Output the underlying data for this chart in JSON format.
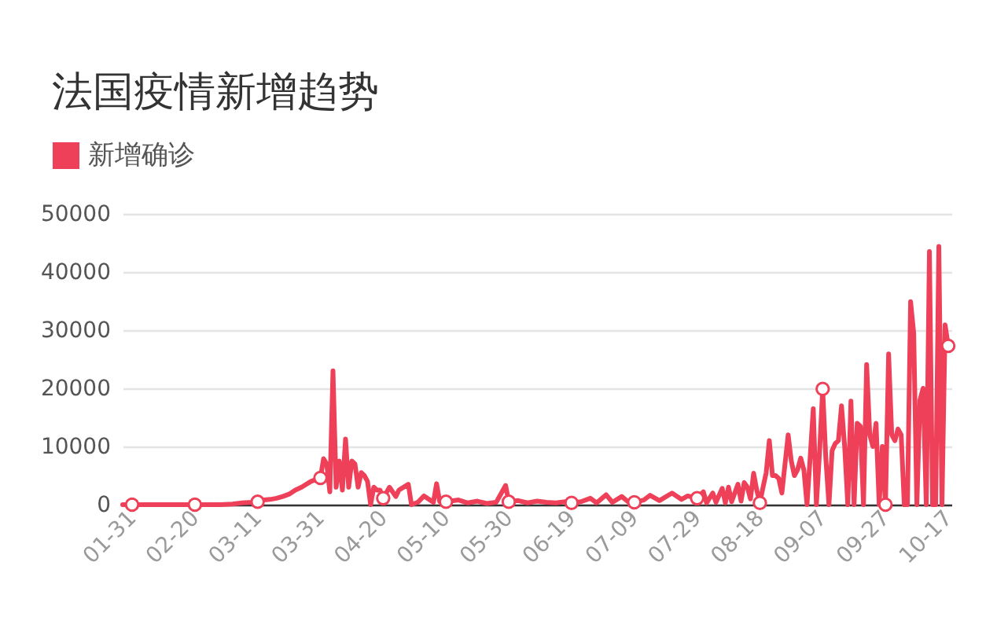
{
  "chart_data": {
    "type": "line",
    "title": "法国疫情新增趋势",
    "legend": "top left",
    "grid": "y",
    "xlim": [
      "--01-28",
      "--10-18"
    ],
    "ylim": [
      0,
      50000
    ],
    "yticks": [
      0,
      10000,
      20000,
      30000,
      40000,
      50000
    ],
    "xticks": [
      {
        "value": "--01-31",
        "label": "01-31"
      },
      {
        "value": "--02-20",
        "label": "02-20"
      },
      {
        "value": "--03-11",
        "label": "03-11"
      },
      {
        "value": "--03-31",
        "label": "03-31"
      },
      {
        "value": "--04-20",
        "label": "04-20"
      },
      {
        "value": "--05-10",
        "label": "05-10"
      },
      {
        "value": "--05-30",
        "label": "05-30"
      },
      {
        "value": "--06-19",
        "label": "06-19"
      },
      {
        "value": "--07-09",
        "label": "07-09"
      },
      {
        "value": "--07-29",
        "label": "07-29"
      },
      {
        "value": "--08-18",
        "label": "08-18"
      },
      {
        "value": "--09-07",
        "label": "09-07"
      },
      {
        "value": "--09-27",
        "label": "09-27"
      },
      {
        "value": "--10-17",
        "label": "10-17"
      }
    ],
    "x": [
      "--01-28",
      "--01-31",
      "--02-10",
      "--02-20",
      "--02-28",
      "--03-03",
      "--03-06",
      "--03-09",
      "--03-11",
      "--03-13",
      "--03-15",
      "--03-17",
      "--03-19",
      "--03-21",
      "--03-23",
      "--03-25",
      "--03-28",
      "--03-31",
      "--04-01",
      "--04-02",
      "--04-03",
      "--04-04",
      "--04-05",
      "--04-06",
      "--04-07",
      "--04-08",
      "--04-09",
      "--04-10",
      "--04-11",
      "--04-12",
      "--04-13",
      "--04-14",
      "--04-15",
      "--04-16",
      "--04-17",
      "--04-18",
      "--04-19",
      "--04-20",
      "--04-22",
      "--04-24",
      "--04-25",
      "--04-28",
      "--04-29",
      "--05-01",
      "--05-03",
      "--05-06",
      "--05-07",
      "--05-08",
      "--05-10",
      "--05-14",
      "--05-17",
      "--05-20",
      "--05-23",
      "--05-26",
      "--05-29",
      "--05-30",
      "--06-02",
      "--06-05",
      "--06-08",
      "--06-11",
      "--06-14",
      "--06-17",
      "--06-19",
      "--06-22",
      "--06-25",
      "--06-27",
      "--06-30",
      "--07-02",
      "--07-05",
      "--07-07",
      "--07-09",
      "--07-12",
      "--07-14",
      "--07-17",
      "--07-21",
      "--07-24",
      "--07-26",
      "--07-29",
      "--07-31",
      "--08-01",
      "--08-03",
      "--08-04",
      "--08-06",
      "--08-07",
      "--08-08",
      "--08-09",
      "--08-11",
      "--08-12",
      "--08-13",
      "--08-14",
      "--08-15",
      "--08-16",
      "--08-17",
      "--08-18",
      "--08-19",
      "--08-20",
      "--08-21",
      "--08-22",
      "--08-23",
      "--08-24",
      "--08-25",
      "--08-26",
      "--08-27",
      "--08-28",
      "--08-29",
      "--08-30",
      "--08-31",
      "--09-01",
      "--09-02",
      "--09-03",
      "--09-04",
      "--09-05",
      "--09-06",
      "--09-07",
      "--09-08",
      "--09-09",
      "--09-10",
      "--09-11",
      "--09-12",
      "--09-13",
      "--09-14",
      "--09-15",
      "--09-16",
      "--09-17",
      "--09-18",
      "--09-19",
      "--09-20",
      "--09-21",
      "--09-22",
      "--09-23",
      "--09-24",
      "--09-25",
      "--09-26",
      "--09-27",
      "--09-28",
      "--09-29",
      "--09-30",
      "--10-01",
      "--10-02",
      "--10-03",
      "--10-04",
      "--10-05",
      "--10-06",
      "--10-07",
      "--10-08",
      "--10-09",
      "--10-10",
      "--10-11",
      "--10-12",
      "--10-13",
      "--10-14",
      "--10-15",
      "--10-16",
      "--10-17"
    ],
    "series": [
      {
        "name": "新增确诊",
        "color": "#ee4058",
        "values": [
          0,
          0,
          0,
          0,
          0,
          100,
          300,
          400,
          500,
          800,
          900,
          1100,
          1400,
          1800,
          2500,
          3000,
          4000,
          4600,
          7900,
          7000,
          2200,
          23000,
          3000,
          7500,
          2500,
          11300,
          3000,
          7500,
          7000,
          3000,
          5500,
          5000,
          4000,
          0,
          3000,
          2500,
          2500,
          1100,
          3000,
          1400,
          2500,
          3500,
          0,
          400,
          1500,
          400,
          3600,
          500,
          500,
          800,
          300,
          600,
          200,
          400,
          3300,
          500,
          700,
          300,
          600,
          400,
          300,
          500,
          300,
          500,
          1100,
          300,
          1700,
          400,
          1400,
          500,
          400,
          800,
          1600,
          700,
          2000,
          900,
          1500,
          1100,
          2200,
          300,
          2000,
          400,
          2800,
          300,
          3000,
          500,
          3500,
          600,
          3800,
          3000,
          1000,
          5400,
          2500,
          300,
          3000,
          5500,
          11000,
          5000,
          5000,
          4500,
          2000,
          7000,
          12000,
          7500,
          5000,
          6000,
          8000,
          6000,
          0,
          8000,
          16500,
          0,
          9000,
          19900,
          8000,
          0,
          9300,
          10500,
          11000,
          17000,
          10000,
          0,
          17800,
          0,
          14000,
          13500,
          0,
          24100,
          12000,
          10000,
          14000,
          0,
          10000,
          0,
          25900,
          12000,
          11000,
          13000,
          12000,
          0,
          0,
          34900,
          29500,
          0,
          18000,
          20000,
          0,
          43500,
          0,
          0,
          44400,
          0,
          30900,
          27300
        ]
      },
      {
        "type": "scatter",
        "color": "#ee4058",
        "x": [
          "--01-31",
          "--02-20",
          "--03-11",
          "--03-31",
          "--04-20",
          "--05-10",
          "--05-30",
          "--06-19",
          "--07-09",
          "--07-29",
          "--08-18",
          "--09-07",
          "--09-27",
          "--10-17"
        ],
        "values": [
          0,
          0,
          500,
          4600,
          1100,
          500,
          500,
          300,
          400,
          1100,
          300,
          19900,
          0,
          27300
        ]
      }
    ]
  }
}
